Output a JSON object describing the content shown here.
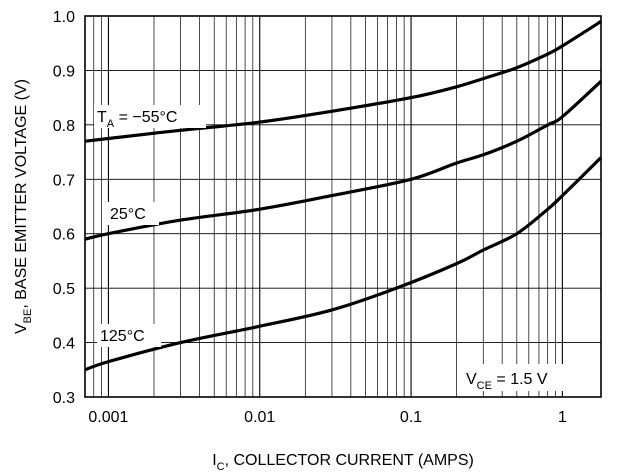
{
  "chart_data": {
    "type": "line",
    "x_scale": "log",
    "xlim": [
      0.0007,
      1.8
    ],
    "ylim": [
      0.3,
      1.0
    ],
    "grid": true,
    "x_ticks": [
      {
        "value": 0.001,
        "label": "0.001"
      },
      {
        "value": 0.01,
        "label": "0.01"
      },
      {
        "value": 0.1,
        "label": "0.1"
      },
      {
        "value": 1,
        "label": "1"
      }
    ],
    "y_ticks": [
      {
        "value": 0.3,
        "label": "0.3"
      },
      {
        "value": 0.4,
        "label": "0.4"
      },
      {
        "value": 0.5,
        "label": "0.5"
      },
      {
        "value": 0.6,
        "label": "0.6"
      },
      {
        "value": 0.7,
        "label": "0.7"
      },
      {
        "value": 0.8,
        "label": "0.8"
      },
      {
        "value": 0.9,
        "label": "0.9"
      },
      {
        "value": 1.0,
        "label": "1.0"
      }
    ],
    "xlabel": {
      "prefix": "I",
      "sub": "C",
      "rest": ", COLLECTOR CURRENT (AMPS)"
    },
    "ylabel": {
      "prefix": "V",
      "sub": "BE",
      "rest": ", BASE EMITTER VOLTAGE (V)"
    },
    "condition": {
      "prefix": "V",
      "sub": "CE",
      "rest": " = 1.5 V"
    },
    "series": [
      {
        "label": {
          "prefix": "T",
          "sub": "A",
          "rest": " = −55°C"
        },
        "points": [
          [
            0.0007,
            0.77
          ],
          [
            0.001,
            0.775
          ],
          [
            0.003,
            0.79
          ],
          [
            0.01,
            0.805
          ],
          [
            0.03,
            0.825
          ],
          [
            0.1,
            0.85
          ],
          [
            0.2,
            0.87
          ],
          [
            0.3,
            0.885
          ],
          [
            0.5,
            0.905
          ],
          [
            0.8,
            0.93
          ],
          [
            1.0,
            0.945
          ],
          [
            1.8,
            0.99
          ]
        ]
      },
      {
        "label": {
          "prefix": "25°C",
          "sub": "",
          "rest": ""
        },
        "points": [
          [
            0.0007,
            0.59
          ],
          [
            0.001,
            0.6
          ],
          [
            0.003,
            0.625
          ],
          [
            0.01,
            0.645
          ],
          [
            0.03,
            0.67
          ],
          [
            0.1,
            0.7
          ],
          [
            0.2,
            0.73
          ],
          [
            0.3,
            0.745
          ],
          [
            0.5,
            0.77
          ],
          [
            0.8,
            0.8
          ],
          [
            1.0,
            0.815
          ],
          [
            1.8,
            0.88
          ]
        ]
      },
      {
        "label": {
          "prefix": "125°C",
          "sub": "",
          "rest": ""
        },
        "points": [
          [
            0.0007,
            0.35
          ],
          [
            0.001,
            0.365
          ],
          [
            0.003,
            0.4
          ],
          [
            0.01,
            0.43
          ],
          [
            0.03,
            0.46
          ],
          [
            0.08,
            0.5
          ],
          [
            0.2,
            0.545
          ],
          [
            0.3,
            0.57
          ],
          [
            0.5,
            0.6
          ],
          [
            0.8,
            0.645
          ],
          [
            1.0,
            0.67
          ],
          [
            1.8,
            0.74
          ]
        ]
      }
    ]
  }
}
